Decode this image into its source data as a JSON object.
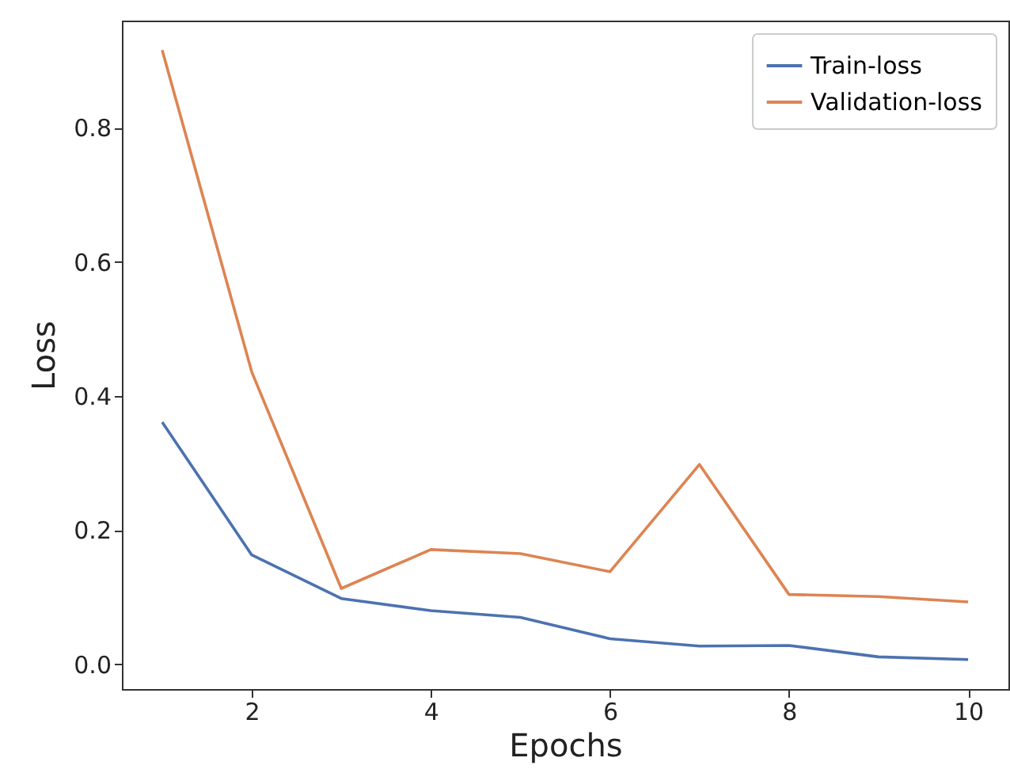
{
  "chart_data": {
    "type": "line",
    "xlabel": "Epochs",
    "ylabel": "Loss",
    "x": [
      1,
      2,
      3,
      4,
      5,
      6,
      7,
      8,
      9,
      10
    ],
    "series": [
      {
        "name": "Train-loss",
        "color": "#4c72b0",
        "values": [
          0.361,
          0.163,
          0.098,
          0.08,
          0.07,
          0.038,
          0.027,
          0.028,
          0.011,
          0.007
        ]
      },
      {
        "name": "Validation-loss",
        "color": "#dd8452",
        "values": [
          0.916,
          0.436,
          0.113,
          0.171,
          0.165,
          0.138,
          0.298,
          0.104,
          0.101,
          0.093
        ]
      }
    ],
    "xlim": [
      0.55,
      10.45
    ],
    "xticks": [
      2,
      4,
      6,
      8,
      10
    ],
    "ylim": [
      -0.037,
      0.96
    ],
    "yticks": [
      {
        "value": 0,
        "label": "0.0"
      },
      {
        "value": 0.2,
        "label": "0.2"
      },
      {
        "value": 0.4,
        "label": "0.4"
      },
      {
        "value": 0.6,
        "label": "0.6"
      },
      {
        "value": 0.8,
        "label": "0.8"
      }
    ],
    "grid": false,
    "legend": "top right",
    "marker": "none",
    "line_style": "solid"
  }
}
